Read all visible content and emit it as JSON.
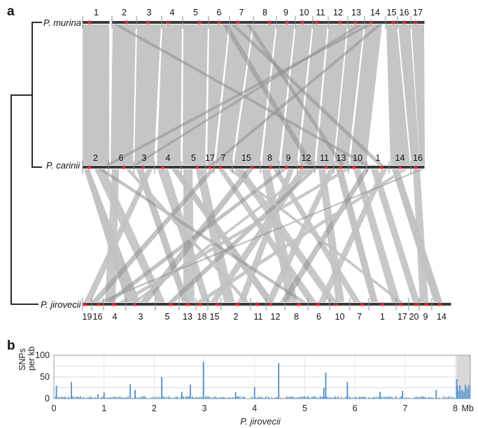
{
  "panel_a": {
    "label": "a",
    "species": [
      "P. murina",
      "P. carinii",
      "P. jirovecii"
    ],
    "murina_chroms": [
      "1",
      "2",
      "3",
      "4",
      "5",
      "6",
      "7",
      "8",
      "9",
      "10",
      "11",
      "12",
      "13",
      "14",
      "15",
      "16",
      "17"
    ],
    "carinii_chroms": [
      "2",
      "6",
      "3",
      "4",
      "5",
      "17",
      "7",
      "15",
      "8",
      "9",
      "12",
      "11",
      "13",
      "10",
      "1",
      "14",
      "16"
    ],
    "jirovecii_chroms": [
      "19",
      "16",
      "4",
      "3",
      "5",
      "13",
      "18",
      "15",
      "2",
      "11",
      "12",
      "8",
      "6",
      "10",
      "7",
      "1",
      "17",
      "20",
      "9",
      "14"
    ],
    "colors": {
      "synteny": "#c0c2c3",
      "crossing": "#8f9192",
      "marker": "#e8282a",
      "tree": "#111111"
    }
  },
  "panel_b": {
    "label": "b",
    "chart_data": {
      "type": "area",
      "xlabel": "P. jirovecii",
      "ylabel": "SNPs per kb",
      "ylabel_lines": [
        "SNPs",
        "per kb"
      ],
      "xlim": [
        0,
        8.3
      ],
      "ylim": [
        0,
        100
      ],
      "yticks": [
        "0",
        "50",
        "100"
      ],
      "xticks": [
        "0",
        "1",
        "2",
        "3",
        "4",
        "5",
        "6",
        "7",
        "8"
      ],
      "x_unit": "Mb",
      "grid": true,
      "series_color": "#4f8fcc",
      "shaded_region": [
        8.02,
        8.3
      ],
      "peaks": [
        {
          "x": 0.05,
          "y": 30
        },
        {
          "x": 0.35,
          "y": 38
        },
        {
          "x": 0.88,
          "y": 10
        },
        {
          "x": 1.0,
          "y": 15
        },
        {
          "x": 1.52,
          "y": 33
        },
        {
          "x": 1.62,
          "y": 20
        },
        {
          "x": 2.15,
          "y": 50
        },
        {
          "x": 2.55,
          "y": 16
        },
        {
          "x": 2.72,
          "y": 32
        },
        {
          "x": 2.98,
          "y": 85
        },
        {
          "x": 3.62,
          "y": 15
        },
        {
          "x": 4.0,
          "y": 27
        },
        {
          "x": 4.48,
          "y": 82
        },
        {
          "x": 5.38,
          "y": 25
        },
        {
          "x": 5.42,
          "y": 60
        },
        {
          "x": 5.85,
          "y": 38
        },
        {
          "x": 6.5,
          "y": 16
        },
        {
          "x": 6.95,
          "y": 18
        },
        {
          "x": 7.62,
          "y": 20
        },
        {
          "x": 8.03,
          "y": 45
        }
      ]
    }
  }
}
